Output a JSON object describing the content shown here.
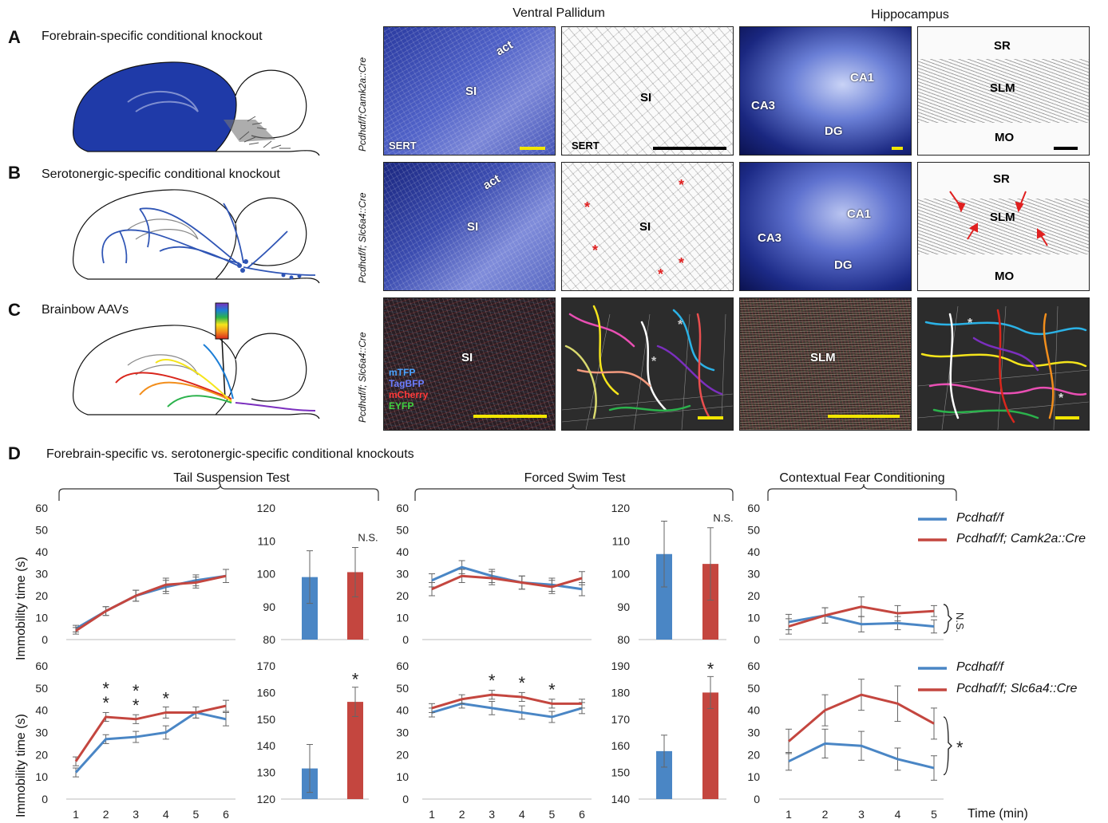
{
  "panel_letters": {
    "a": "A",
    "b": "B",
    "c": "C",
    "d": "D"
  },
  "panel_titles": {
    "a": "Forebrain-specific conditional knockout",
    "b": "Serotonergic-specific conditional knockout",
    "c": "Brainbow AAVs",
    "d": "Forebrain-specific vs. serotonergic-specific conditional knockouts"
  },
  "column_headers": {
    "ventral": "Ventral Pallidum",
    "hippo": "Hippocampus"
  },
  "genotype_rows": {
    "a": "Pcdhαf/f;Camk2a::Cre",
    "b": "Pcdhαf/f; Slc6a4::Cre",
    "c": "Pcdhαf/f; Slc6a4::Cre"
  },
  "image_labels": {
    "a1": {
      "act": "act",
      "si": "SI",
      "sert": "SERT"
    },
    "a2": {
      "si": "SI",
      "sert": "SERT"
    },
    "a3": {
      "ca1": "CA1",
      "ca3": "CA3",
      "dg": "DG"
    },
    "a4": {
      "sr": "SR",
      "slm": "SLM",
      "mo": "MO"
    },
    "b1": {
      "act": "act",
      "si": "SI"
    },
    "b2": {
      "si": "SI"
    },
    "b3": {
      "ca1": "CA1",
      "ca3": "CA3",
      "dg": "DG"
    },
    "b4": {
      "sr": "SR",
      "slm": "SLM",
      "mo": "MO"
    },
    "c1": {
      "si": "SI",
      "mtfp": "mTFP",
      "tagbfp": "TagBFP",
      "mcherry": "mCherry",
      "eyfp": "EYFP"
    },
    "c3": {
      "slm": "SLM"
    }
  },
  "test_headers": {
    "tst": "Tail Suspension Test",
    "fst": "Forced Swim Test",
    "cfc": "Contextual Fear Conditioning"
  },
  "y_axis_label": "Immobility time (s)",
  "x_axis_label": "Time (min)",
  "colors": {
    "control": "#4a86c5",
    "cko": "#c4463f",
    "micro_bg": "#1c2a8c",
    "brain_fill": "#1f3aa8"
  },
  "legends": {
    "top": {
      "control": "Pcdhαf/f",
      "cko": "Pcdhαf/f; Camk2a::Cre"
    },
    "bottom": {
      "control": "Pcdhαf/f",
      "cko": "Pcdhαf/f; Slc6a4::Cre"
    }
  },
  "chart_data": [
    {
      "id": "tst_camk2a_line",
      "type": "line",
      "x": [
        1,
        2,
        3,
        4,
        5,
        6
      ],
      "ylim": [
        0,
        60
      ],
      "yticks": [
        0,
        10,
        20,
        30,
        40,
        50,
        60
      ],
      "series": [
        {
          "name": "Pcdhαf/f",
          "values": [
            5,
            13,
            20,
            24,
            27,
            29
          ],
          "err": [
            1.5,
            2,
            2.5,
            3,
            2.5,
            3
          ]
        },
        {
          "name": "Pcdhαf/f; Camk2a::Cre",
          "values": [
            4,
            13,
            20,
            25,
            26,
            29
          ],
          "err": [
            1.5,
            2,
            2.5,
            3,
            2.5,
            3
          ]
        }
      ],
      "annotations": []
    },
    {
      "id": "tst_camk2a_bar",
      "type": "bar",
      "ylim": [
        80,
        120
      ],
      "yticks": [
        80,
        90,
        100,
        110,
        120
      ],
      "values": [
        99,
        100.5
      ],
      "err": [
        8,
        7.5
      ],
      "annotations": [
        {
          "bar": 1,
          "text": "N.S."
        }
      ]
    },
    {
      "id": "fst_camk2a_line",
      "type": "line",
      "x": [
        1,
        2,
        3,
        4,
        5,
        6
      ],
      "ylim": [
        0,
        60
      ],
      "yticks": [
        0,
        10,
        20,
        30,
        40,
        50,
        60
      ],
      "series": [
        {
          "name": "Pcdhαf/f",
          "values": [
            27,
            33,
            29,
            26,
            25,
            23
          ],
          "err": [
            3,
            3,
            3,
            3,
            3,
            3
          ]
        },
        {
          "name": "Pcdhαf/f; Camk2a::Cre",
          "values": [
            23,
            29,
            28,
            26,
            24,
            28
          ],
          "err": [
            3,
            3,
            3,
            3,
            3,
            3
          ]
        }
      ],
      "annotations": []
    },
    {
      "id": "fst_camk2a_bar",
      "type": "bar",
      "ylim": [
        80,
        120
      ],
      "yticks": [
        80,
        90,
        100,
        110,
        120
      ],
      "values": [
        106,
        103
      ],
      "err": [
        10,
        11
      ],
      "annotations": [
        {
          "bar": 1,
          "text": "N.S."
        }
      ]
    },
    {
      "id": "cfc_camk2a_line",
      "type": "line",
      "x": [
        1,
        2,
        3,
        4,
        5
      ],
      "ylim": [
        0,
        60
      ],
      "yticks": [
        0,
        10,
        20,
        30,
        40,
        50,
        60
      ],
      "series": [
        {
          "name": "Pcdhαf/f",
          "values": [
            8,
            11,
            7,
            7.5,
            6
          ],
          "err": [
            3.5,
            3.5,
            3.5,
            3,
            3
          ]
        },
        {
          "name": "Pcdhαf/f; Camk2a::Cre",
          "values": [
            6,
            11,
            15,
            12,
            13
          ],
          "err": [
            3.5,
            3.5,
            4.5,
            3.5,
            2.5
          ]
        }
      ],
      "annotations": [
        {
          "type": "bracket",
          "text": "N.S."
        }
      ]
    },
    {
      "id": "tst_slc6a4_line",
      "type": "line",
      "x": [
        1,
        2,
        3,
        4,
        5,
        6
      ],
      "ylim": [
        0,
        60
      ],
      "yticks": [
        0,
        10,
        20,
        30,
        40,
        50,
        60
      ],
      "series": [
        {
          "name": "Pcdhαf/f",
          "values": [
            12,
            27,
            28,
            30,
            39,
            36
          ],
          "err": [
            2,
            2,
            2.5,
            3,
            2.5,
            3
          ]
        },
        {
          "name": "Pcdhαf/f; Slc6a4::Cre",
          "values": [
            17,
            37,
            36,
            39,
            39,
            42
          ],
          "err": [
            2,
            2,
            2,
            2.5,
            2.5,
            2.5
          ]
        }
      ],
      "annotations": [
        {
          "x": 2,
          "text": "**"
        },
        {
          "x": 3,
          "text": "**"
        },
        {
          "x": 4,
          "text": "*"
        }
      ]
    },
    {
      "id": "tst_slc6a4_bar",
      "type": "bar",
      "ylim": [
        120,
        170
      ],
      "yticks": [
        120,
        130,
        140,
        150,
        160,
        170
      ],
      "values": [
        131.5,
        156.5
      ],
      "err": [
        9,
        5.5
      ],
      "annotations": [
        {
          "bar": 1,
          "text": "*"
        }
      ]
    },
    {
      "id": "fst_slc6a4_line",
      "type": "line",
      "x": [
        1,
        2,
        3,
        4,
        5,
        6
      ],
      "ylim": [
        0,
        60
      ],
      "yticks": [
        0,
        10,
        20,
        30,
        40,
        50,
        60
      ],
      "series": [
        {
          "name": "Pcdhαf/f",
          "values": [
            39,
            43,
            41,
            39,
            37,
            41
          ],
          "err": [
            2,
            2,
            3,
            3,
            2.5,
            2.5
          ]
        },
        {
          "name": "Pcdhαf/f; Slc6a4::Cre",
          "values": [
            41,
            45,
            47,
            46,
            43,
            43
          ],
          "err": [
            2,
            2,
            2,
            2,
            2,
            2
          ]
        }
      ],
      "annotations": [
        {
          "x": 3,
          "text": "*"
        },
        {
          "x": 4,
          "text": "*"
        },
        {
          "x": 5,
          "text": "*"
        }
      ]
    },
    {
      "id": "fst_slc6a4_bar",
      "type": "bar",
      "ylim": [
        140,
        190
      ],
      "yticks": [
        140,
        150,
        160,
        170,
        180,
        190
      ],
      "values": [
        158,
        180
      ],
      "err": [
        6,
        6
      ],
      "annotations": [
        {
          "bar": 1,
          "text": "*"
        }
      ]
    },
    {
      "id": "cfc_slc6a4_line",
      "type": "line",
      "x": [
        1,
        2,
        3,
        4,
        5
      ],
      "ylim": [
        0,
        60
      ],
      "yticks": [
        0,
        10,
        20,
        30,
        40,
        50,
        60
      ],
      "series": [
        {
          "name": "Pcdhαf/f",
          "values": [
            17,
            25,
            24,
            18,
            14
          ],
          "err": [
            4,
            6.5,
            6.5,
            5,
            5.5
          ]
        },
        {
          "name": "Pcdhαf/f; Slc6a4::Cre",
          "values": [
            26,
            40,
            47,
            43,
            34
          ],
          "err": [
            5.5,
            7,
            7,
            8,
            7
          ]
        }
      ],
      "annotations": [
        {
          "type": "bracket",
          "text": "*"
        }
      ]
    }
  ]
}
